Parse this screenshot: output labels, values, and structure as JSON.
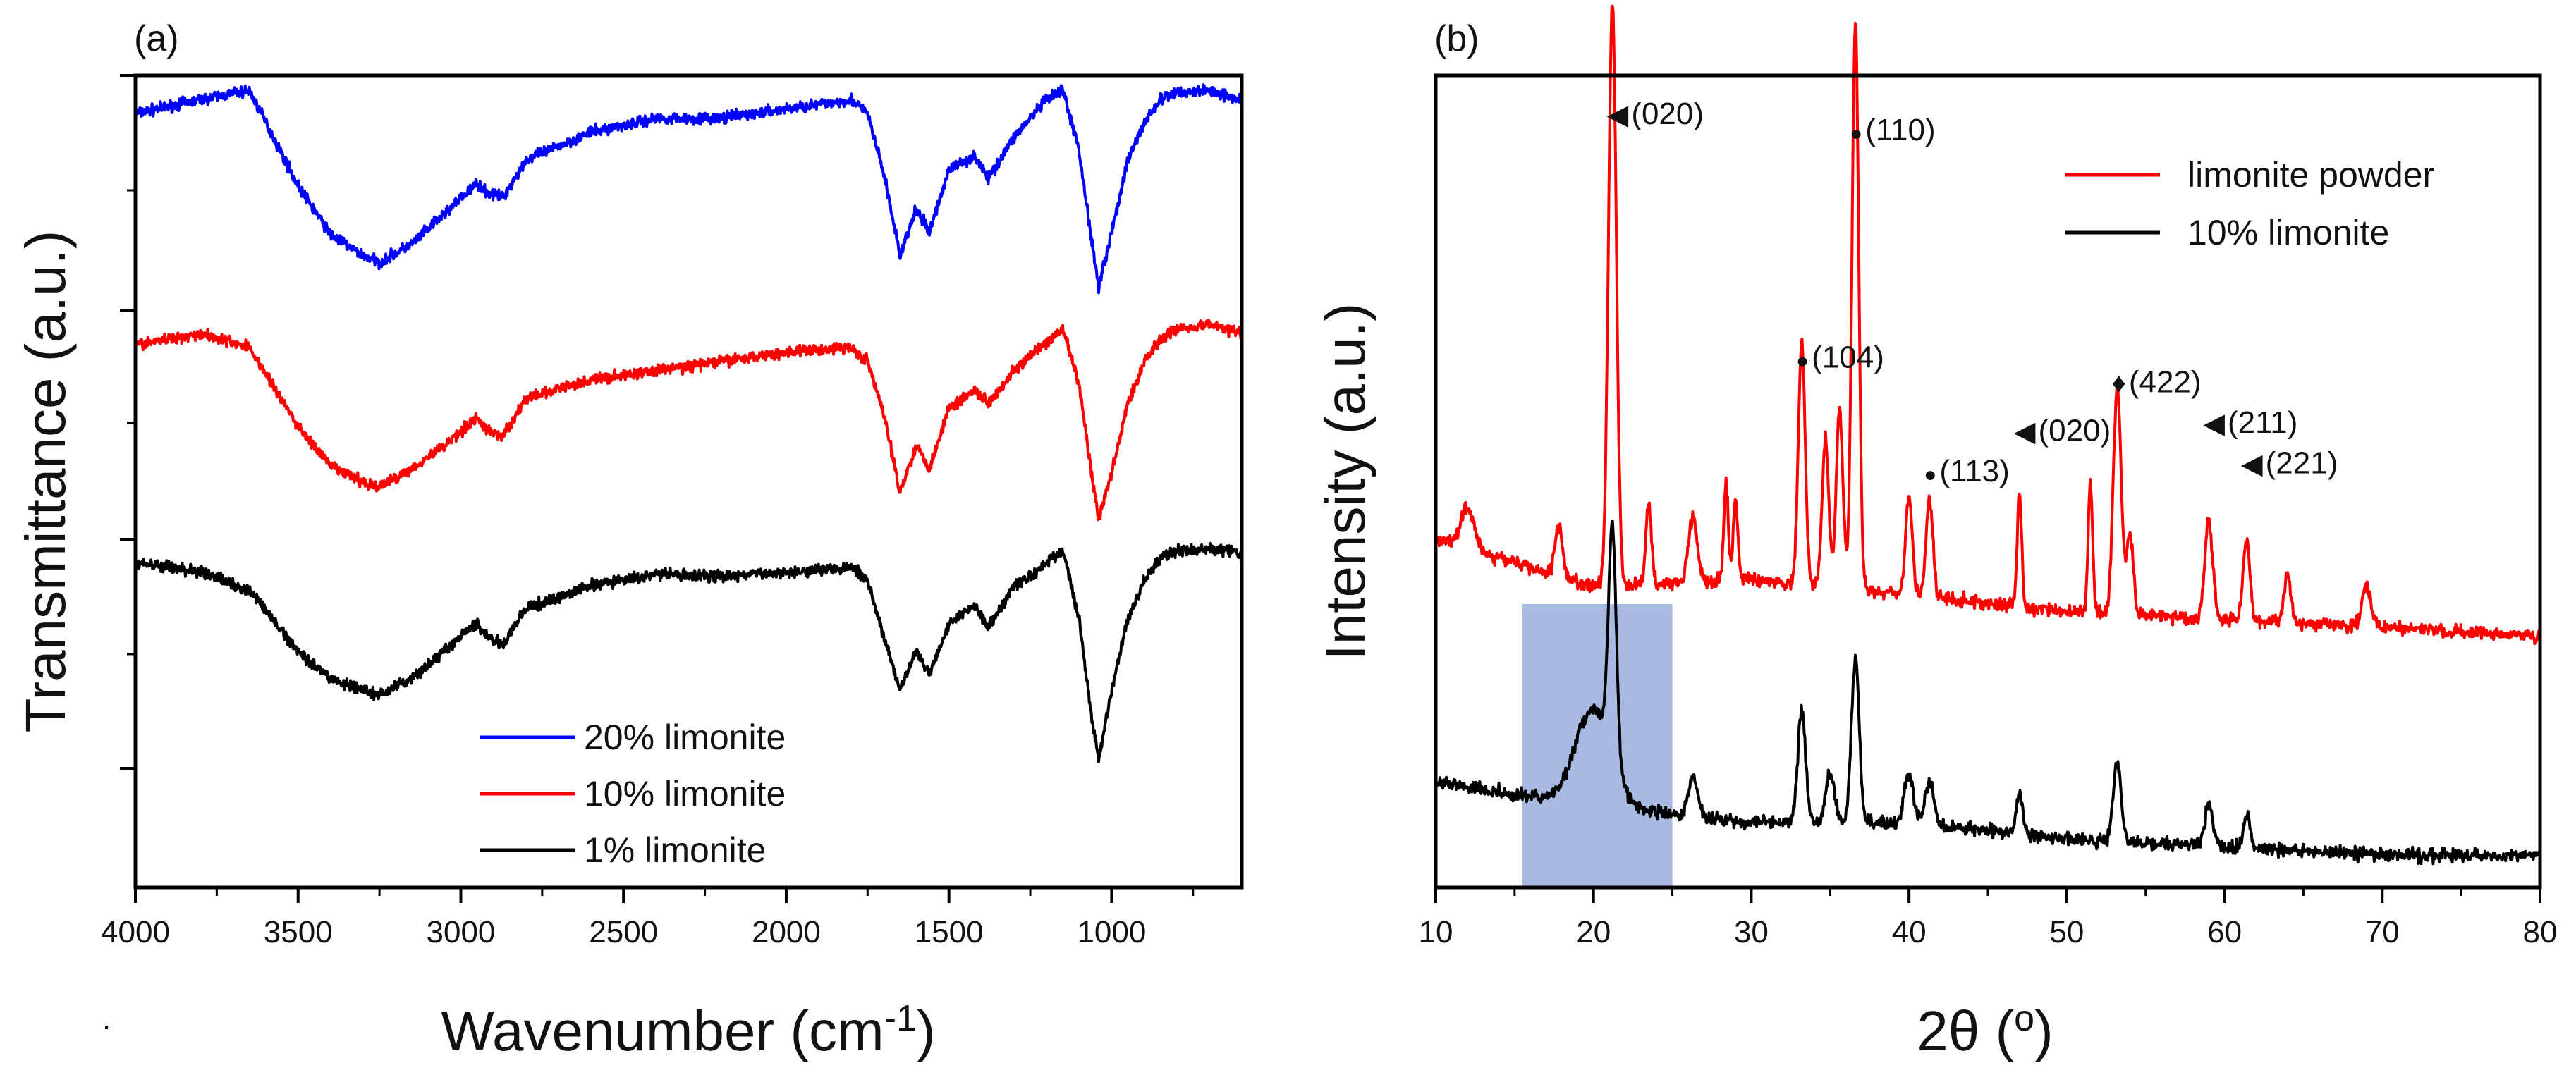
{
  "chart_data": [
    {
      "panel": "(a)",
      "type": "line",
      "xlabel": "Wavenumber (cm",
      "xlabel_sup": "-1",
      "xlabel_close": ")",
      "ylabel": "Transmittance (a.u.)",
      "xlim": [
        4000,
        600
      ],
      "x_ticks": [
        4000,
        3500,
        3000,
        2500,
        2000,
        1500,
        1000
      ],
      "y_ticks_shown": false,
      "legend_position": "bottom-center",
      "series": [
        {
          "name": "20% limonite",
          "color": "#0000ff",
          "offset": 2,
          "x": [
            4000,
            3800,
            3650,
            3500,
            3400,
            3300,
            3250,
            3150,
            3050,
            2950,
            2920,
            2870,
            2800,
            2600,
            2400,
            2200,
            2000,
            1800,
            1750,
            1700,
            1650,
            1600,
            1560,
            1500,
            1420,
            1380,
            1300,
            1250,
            1200,
            1150,
            1100,
            1060,
            1040,
            1000,
            950,
            900,
            850,
            800,
            700,
            600
          ],
          "y": [
            0.86,
            0.92,
            0.96,
            0.55,
            0.34,
            0.25,
            0.22,
            0.3,
            0.43,
            0.56,
            0.52,
            0.5,
            0.66,
            0.78,
            0.84,
            0.84,
            0.88,
            0.92,
            0.86,
            0.6,
            0.25,
            0.45,
            0.35,
            0.62,
            0.68,
            0.58,
            0.76,
            0.84,
            0.92,
            0.96,
            0.7,
            0.3,
            0.12,
            0.35,
            0.66,
            0.82,
            0.92,
            0.95,
            0.96,
            0.92
          ]
        },
        {
          "name": "10% limonite",
          "color": "#ff0000",
          "offset": 1,
          "x": [
            4000,
            3800,
            3650,
            3500,
            3400,
            3300,
            3250,
            3150,
            3050,
            2950,
            2920,
            2870,
            2800,
            2600,
            2400,
            2200,
            2000,
            1800,
            1750,
            1700,
            1650,
            1600,
            1560,
            1500,
            1420,
            1380,
            1300,
            1250,
            1200,
            1150,
            1100,
            1060,
            1040,
            1000,
            950,
            900,
            850,
            800,
            700,
            600
          ],
          "y": [
            0.85,
            0.9,
            0.84,
            0.5,
            0.33,
            0.26,
            0.24,
            0.32,
            0.42,
            0.54,
            0.48,
            0.46,
            0.62,
            0.7,
            0.74,
            0.78,
            0.82,
            0.84,
            0.78,
            0.55,
            0.22,
            0.42,
            0.32,
            0.58,
            0.66,
            0.6,
            0.74,
            0.8,
            0.86,
            0.92,
            0.68,
            0.28,
            0.1,
            0.3,
            0.6,
            0.78,
            0.88,
            0.92,
            0.94,
            0.9
          ]
        },
        {
          "name": "1% limonite",
          "color": "#000000",
          "offset": 0,
          "x": [
            4000,
            3800,
            3650,
            3500,
            3400,
            3300,
            3250,
            3150,
            3050,
            2950,
            2920,
            2870,
            2800,
            2600,
            2400,
            2200,
            2000,
            1800,
            1750,
            1700,
            1650,
            1600,
            1560,
            1500,
            1420,
            1380,
            1300,
            1250,
            1200,
            1150,
            1100,
            1060,
            1040,
            1000,
            950,
            900,
            850,
            800,
            700,
            600
          ],
          "y": [
            0.9,
            0.86,
            0.78,
            0.52,
            0.4,
            0.35,
            0.33,
            0.4,
            0.52,
            0.64,
            0.58,
            0.55,
            0.7,
            0.8,
            0.85,
            0.84,
            0.86,
            0.88,
            0.82,
            0.58,
            0.35,
            0.52,
            0.42,
            0.64,
            0.72,
            0.62,
            0.8,
            0.84,
            0.9,
            0.95,
            0.66,
            0.22,
            0.05,
            0.35,
            0.66,
            0.82,
            0.92,
            0.95,
            0.96,
            0.94
          ]
        }
      ]
    },
    {
      "panel": "(b)",
      "type": "line",
      "xlabel": "2θ (",
      "xlabel_sup": "o",
      "xlabel_close": ")",
      "ylabel": "Intensity (a.u.)",
      "xlim": [
        10,
        80
      ],
      "x_ticks": [
        10,
        20,
        30,
        40,
        50,
        60,
        70,
        80
      ],
      "y_ticks_shown": false,
      "legend_position": "top-right",
      "highlight_band": {
        "x_from": 15.5,
        "x_to": 25,
        "color": "#9fb3de"
      },
      "series": [
        {
          "name": "limonite powder",
          "color": "#ff0000",
          "baseline": [
            [
              10,
              0.43
            ],
            [
              20,
              0.37
            ],
            [
              30,
              0.38
            ],
            [
              40,
              0.36
            ],
            [
              50,
              0.34
            ],
            [
              60,
              0.33
            ],
            [
              70,
              0.32
            ],
            [
              80,
              0.31
            ]
          ],
          "peaks": [
            [
              12.0,
              0.05,
              0.6
            ],
            [
              17.8,
              0.06,
              0.35
            ],
            [
              21.2,
              0.72,
              0.35
            ],
            [
              23.5,
              0.1,
              0.25
            ],
            [
              26.3,
              0.08,
              0.4
            ],
            [
              28.4,
              0.12,
              0.2
            ],
            [
              29.0,
              0.1,
              0.2
            ],
            [
              33.2,
              0.3,
              0.3
            ],
            [
              34.7,
              0.18,
              0.3
            ],
            [
              35.6,
              0.22,
              0.3
            ],
            [
              36.6,
              0.7,
              0.3
            ],
            [
              40.0,
              0.12,
              0.3
            ],
            [
              41.3,
              0.12,
              0.3
            ],
            [
              47.0,
              0.14,
              0.2
            ],
            [
              51.5,
              0.16,
              0.2
            ],
            [
              53.2,
              0.28,
              0.35
            ],
            [
              54.0,
              0.1,
              0.3
            ],
            [
              59.0,
              0.12,
              0.35
            ],
            [
              61.4,
              0.1,
              0.3
            ],
            [
              64.0,
              0.06,
              0.3
            ],
            [
              69.0,
              0.05,
              0.4
            ]
          ]
        },
        {
          "name": "10% limonite",
          "color": "#000000",
          "baseline": [
            [
              10,
              0.13
            ],
            [
              20,
              0.1
            ],
            [
              30,
              0.08
            ],
            [
              40,
              0.08
            ],
            [
              50,
              0.06
            ],
            [
              60,
              0.05
            ],
            [
              70,
              0.04
            ],
            [
              80,
              0.04
            ]
          ],
          "peaks": [
            [
              20.0,
              0.12,
              1.6
            ],
            [
              21.2,
              0.28,
              0.35
            ],
            [
              26.3,
              0.05,
              0.4
            ],
            [
              33.2,
              0.14,
              0.35
            ],
            [
              35.0,
              0.06,
              0.4
            ],
            [
              36.6,
              0.2,
              0.35
            ],
            [
              40.0,
              0.06,
              0.4
            ],
            [
              41.3,
              0.05,
              0.4
            ],
            [
              47.0,
              0.05,
              0.3
            ],
            [
              53.2,
              0.1,
              0.35
            ],
            [
              59.0,
              0.05,
              0.35
            ],
            [
              61.4,
              0.04,
              0.3
            ]
          ]
        }
      ],
      "annotations": [
        {
          "text": "(020)",
          "marker": "◀",
          "x": 21.2,
          "level": 0.94
        },
        {
          "text": "(110)",
          "marker": "●",
          "x": 36.6,
          "level": 0.92
        },
        {
          "text": "(104)",
          "marker": "●",
          "x": 33.2,
          "level": 0.64
        },
        {
          "text": "(422)",
          "marker": "♦",
          "x": 53.2,
          "level": 0.61
        },
        {
          "text": "(020)",
          "marker": "◀",
          "x": 47.0,
          "level": 0.55
        },
        {
          "text": "(211)",
          "marker": "◀",
          "x": 59.0,
          "level": 0.56
        },
        {
          "text": "(113)",
          "marker": "●",
          "x": 41.3,
          "level": 0.5
        },
        {
          "text": "(221)",
          "marker": "◀",
          "x": 61.4,
          "level": 0.51
        }
      ]
    }
  ],
  "stray_mark": "."
}
